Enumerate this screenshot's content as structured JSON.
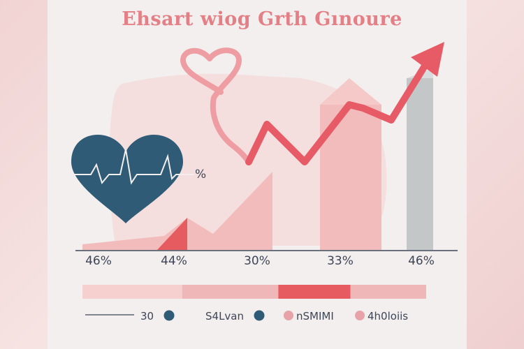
{
  "chart_data": {
    "type": "area",
    "title": "Ehsart wiog Grth Gınoure",
    "tick_labels": [
      "46%",
      "44%",
      "30%",
      "33%",
      "46%"
    ],
    "heart_label": "%",
    "legend": [
      {
        "name": "30",
        "color": "#2f5b77"
      },
      {
        "name": "S4Lvan",
        "color": "#2f5b77"
      },
      {
        "name": "nSMIMI",
        "color": "#e8a3a9"
      },
      {
        "name": "4h0loiis",
        "color": "#e8a3a9"
      }
    ],
    "bar_segments": [
      {
        "share": 0.29,
        "color": "#f6d0cf"
      },
      {
        "share": 0.28,
        "color": "#f0b7b8"
      },
      {
        "share": 0.21,
        "color": "#e55b5f"
      },
      {
        "share": 0.22,
        "color": "#f0b7b8"
      }
    ],
    "colors": {
      "accent": "#e65b66",
      "heart": "#2f5b77",
      "area_light": "#f2bcbc",
      "gray_bar": "#c3c7c8"
    }
  }
}
